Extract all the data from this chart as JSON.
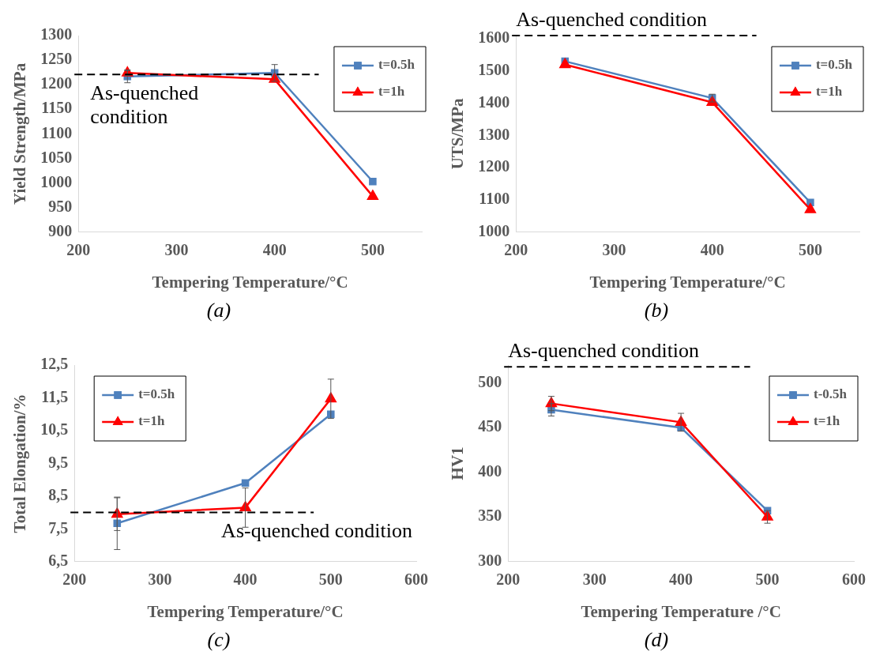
{
  "chart_data": [
    {
      "type": "line",
      "xlabel": "Tempering Temperature/°C",
      "ylabel": "Yield Strength/MPa",
      "x": [
        250,
        400,
        500
      ],
      "xlim": [
        200,
        550
      ],
      "xticks": [
        200,
        300,
        400,
        500
      ],
      "ylim": [
        900,
        1300
      ],
      "yticks": [
        900,
        950,
        1000,
        1050,
        1100,
        1150,
        1200,
        1250,
        1300
      ],
      "legend": "top right",
      "grid": false,
      "series": [
        {
          "name": "t=0.5h",
          "color": "#4f81bd",
          "marker": "square",
          "values": [
            1217,
            1224,
            1003
          ],
          "errors": [
            13,
            17,
            null
          ]
        },
        {
          "name": "t=1h",
          "color": "#ff0000",
          "marker": "triangle",
          "values": [
            1224,
            1211,
            973
          ],
          "errors": [
            5,
            null,
            null
          ]
        }
      ],
      "ref_lines": [
        {
          "axis": "y",
          "value": 1221,
          "label": "As-quenched condition",
          "line_style": "dashed",
          "color": "#000000"
        }
      ],
      "annotations": [
        "(a)"
      ]
    },
    {
      "type": "line",
      "xlabel": "Tempering Temperature/°C",
      "ylabel": "UTS/MPa",
      "x": [
        250,
        400,
        500
      ],
      "xlim": [
        200,
        550
      ],
      "xticks": [
        200,
        300,
        400,
        500
      ],
      "ylim": [
        1000,
        1610
      ],
      "yticks": [
        1000,
        1100,
        1200,
        1300,
        1400,
        1500,
        1600
      ],
      "legend": "top right",
      "grid": false,
      "series": [
        {
          "name": "t=0.5h",
          "color": "#4f81bd",
          "marker": "square",
          "values": [
            1530,
            1416,
            1092
          ],
          "errors": [
            null,
            12,
            null
          ]
        },
        {
          "name": "t=1h",
          "color": "#ff0000",
          "marker": "triangle",
          "values": [
            1520,
            1403,
            1070
          ]
        }
      ],
      "ref_lines": [
        {
          "axis": "y",
          "value": 1610,
          "label": "As-quenched condition",
          "line_style": "dashed",
          "color": "#000000"
        }
      ],
      "annotations": [
        "(b)"
      ]
    },
    {
      "type": "line",
      "xlabel": "Tempering Temperature/°C",
      "ylabel": "Total Elongation/%",
      "x": [
        250,
        400,
        500
      ],
      "xlim": [
        200,
        600
      ],
      "xticks": [
        200,
        300,
        400,
        500,
        600
      ],
      "ylim": [
        6.5,
        12.5
      ],
      "yticks": [
        {
          "value": 6.5,
          "label": "6,5"
        },
        {
          "value": 7.5,
          "label": "7,5"
        },
        {
          "value": 8.5,
          "label": "8,5"
        },
        {
          "value": 9.5,
          "label": "9,5"
        },
        {
          "value": 10.5,
          "label": "10,5"
        },
        {
          "value": 11.5,
          "label": "11,5"
        },
        {
          "value": 12.5,
          "label": "12,5"
        }
      ],
      "legend": "top left",
      "grid": false,
      "series": [
        {
          "name": "t=0.5h",
          "color": "#4f81bd",
          "marker": "square",
          "values": [
            7.67,
            8.9,
            11.0
          ],
          "errors": [
            0.8,
            null,
            null
          ]
        },
        {
          "name": "t=1h",
          "color": "#ff0000",
          "marker": "triangle",
          "values": [
            7.95,
            8.15,
            11.47
          ],
          "errors": [
            0.5,
            0.6,
            0.6
          ]
        }
      ],
      "ref_lines": [
        {
          "axis": "y",
          "value": 8.0,
          "label": "As-quenched condition",
          "line_style": "dashed",
          "color": "#000000"
        }
      ],
      "annotations": [
        "(c)"
      ]
    },
    {
      "type": "line",
      "xlabel": "Tempering Temperature /°C",
      "ylabel": "HV1",
      "x": [
        250,
        400,
        500
      ],
      "xlim": [
        200,
        600
      ],
      "xticks": [
        200,
        300,
        400,
        500,
        600
      ],
      "ylim": [
        300,
        520
      ],
      "yticks": [
        300,
        350,
        400,
        450,
        500
      ],
      "legend": "top right",
      "grid": false,
      "series": [
        {
          "name": "t-0.5h",
          "color": "#4f81bd",
          "marker": "square",
          "values": [
            470,
            450,
            357
          ],
          "errors": [
            7,
            null,
            null
          ]
        },
        {
          "name": "t=1h",
          "color": "#ff0000",
          "marker": "triangle",
          "values": [
            477,
            456,
            350
          ],
          "errors": [
            8,
            10,
            7
          ]
        }
      ],
      "ref_lines": [
        {
          "axis": "y",
          "value": 518,
          "label": "As-quenched condition",
          "line_style": "dashed",
          "color": "#000000"
        }
      ],
      "annotations": [
        "(d)"
      ]
    }
  ]
}
